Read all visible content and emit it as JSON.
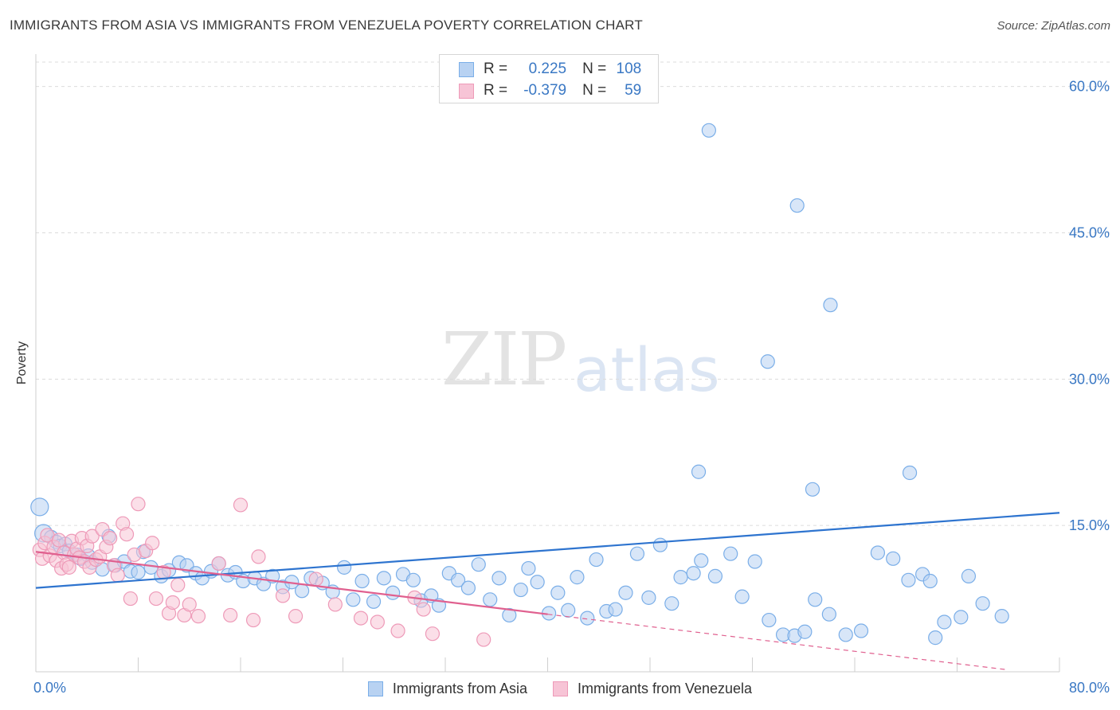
{
  "title": "IMMIGRANTS FROM ASIA VS IMMIGRANTS FROM VENEZUELA POVERTY CORRELATION CHART",
  "source": "Source: ZipAtlas.com",
  "watermark": {
    "zip": "ZIP",
    "atlas": "atlas"
  },
  "legend": [
    {
      "name": "Immigrants from Asia",
      "r_label": "R =",
      "r_value": "0.225",
      "n_label": "N =",
      "n_value": "108",
      "color": "#7aaee8",
      "fill": "#b8d2f2",
      "line": "#2e74cf"
    },
    {
      "name": "Immigrants from Venezuela",
      "r_label": "R =",
      "r_value": "-0.379",
      "n_label": "N =",
      "n_value": "59",
      "color": "#ee9ab8",
      "fill": "#f7c4d6",
      "line": "#e0608f"
    }
  ],
  "chart_data": {
    "type": "scatter",
    "title": "IMMIGRANTS FROM ASIA VS IMMIGRANTS FROM VENEZUELA POVERTY CORRELATION CHART",
    "xlabel": "",
    "ylabel": "Poverty",
    "xlim": [
      0,
      80
    ],
    "ylim": [
      0,
      62.5
    ],
    "x_tick_labels": [
      "0.0%",
      "80.0%"
    ],
    "y_ticks": [
      15,
      30,
      45,
      60
    ],
    "y_tick_labels": [
      "15.0%",
      "30.0%",
      "45.0%",
      "60.0%"
    ],
    "grid": true,
    "series": [
      {
        "name": "Immigrants from Asia",
        "r": 0.225,
        "n": 108,
        "trend": {
          "x": [
            0,
            80
          ],
          "y": [
            8.6,
            16.3
          ]
        },
        "points": [
          [
            0.3,
            16.9
          ],
          [
            0.6,
            14.2
          ],
          [
            1.2,
            13.8
          ],
          [
            1.6,
            13.3
          ],
          [
            1.9,
            12.9
          ],
          [
            2.3,
            13.1
          ],
          [
            2.6,
            12.4
          ],
          [
            3.2,
            12.0
          ],
          [
            3.5,
            11.6
          ],
          [
            4.1,
            11.9
          ],
          [
            4.4,
            11.2
          ],
          [
            5.2,
            10.5
          ],
          [
            5.7,
            13.9
          ],
          [
            6.2,
            10.9
          ],
          [
            6.9,
            11.3
          ],
          [
            7.4,
            10.3
          ],
          [
            8.0,
            10.2
          ],
          [
            8.4,
            12.3
          ],
          [
            9.0,
            10.7
          ],
          [
            9.8,
            9.8
          ],
          [
            10.4,
            10.4
          ],
          [
            11.2,
            11.2
          ],
          [
            11.8,
            10.9
          ],
          [
            12.5,
            10.1
          ],
          [
            13.0,
            9.6
          ],
          [
            13.7,
            10.3
          ],
          [
            14.3,
            11.1
          ],
          [
            15.0,
            9.9
          ],
          [
            15.6,
            10.2
          ],
          [
            16.2,
            9.3
          ],
          [
            17.1,
            9.6
          ],
          [
            17.8,
            9.0
          ],
          [
            18.5,
            9.8
          ],
          [
            19.3,
            8.7
          ],
          [
            20.0,
            9.2
          ],
          [
            20.8,
            8.3
          ],
          [
            21.5,
            9.6
          ],
          [
            22.4,
            9.1
          ],
          [
            23.2,
            8.2
          ],
          [
            24.1,
            10.7
          ],
          [
            24.8,
            7.4
          ],
          [
            25.5,
            9.3
          ],
          [
            26.4,
            7.2
          ],
          [
            27.2,
            9.6
          ],
          [
            27.9,
            8.1
          ],
          [
            28.7,
            10.0
          ],
          [
            29.5,
            9.4
          ],
          [
            30.1,
            7.3
          ],
          [
            30.9,
            7.8
          ],
          [
            31.5,
            6.8
          ],
          [
            32.3,
            10.1
          ],
          [
            33.0,
            9.4
          ],
          [
            33.8,
            8.6
          ],
          [
            34.6,
            11.0
          ],
          [
            35.5,
            7.4
          ],
          [
            36.2,
            9.6
          ],
          [
            37.0,
            5.8
          ],
          [
            37.9,
            8.4
          ],
          [
            38.5,
            10.6
          ],
          [
            39.2,
            9.2
          ],
          [
            40.1,
            6.0
          ],
          [
            40.8,
            8.1
          ],
          [
            41.6,
            6.3
          ],
          [
            42.3,
            9.7
          ],
          [
            43.1,
            5.5
          ],
          [
            43.8,
            11.5
          ],
          [
            44.6,
            6.2
          ],
          [
            45.3,
            6.4
          ],
          [
            46.1,
            8.1
          ],
          [
            47.0,
            12.1
          ],
          [
            47.9,
            7.6
          ],
          [
            48.8,
            13.0
          ],
          [
            49.7,
            7.0
          ],
          [
            50.4,
            9.7
          ],
          [
            51.4,
            10.1
          ],
          [
            52.0,
            11.4
          ],
          [
            53.1,
            9.8
          ],
          [
            54.3,
            12.1
          ],
          [
            55.2,
            7.7
          ],
          [
            56.2,
            11.3
          ],
          [
            57.3,
            5.3
          ],
          [
            58.4,
            3.8
          ],
          [
            59.3,
            3.7
          ],
          [
            60.1,
            4.1
          ],
          [
            60.9,
            7.4
          ],
          [
            62.0,
            5.9
          ],
          [
            63.3,
            3.8
          ],
          [
            64.5,
            4.2
          ],
          [
            65.8,
            12.2
          ],
          [
            67.0,
            11.6
          ],
          [
            68.2,
            9.4
          ],
          [
            69.3,
            10.0
          ],
          [
            70.3,
            3.5
          ],
          [
            71.0,
            5.1
          ],
          [
            72.3,
            5.6
          ],
          [
            72.9,
            9.8
          ],
          [
            74.0,
            7.0
          ],
          [
            75.5,
            5.7
          ],
          [
            52.6,
            55.5
          ],
          [
            59.5,
            47.8
          ],
          [
            62.1,
            37.6
          ],
          [
            57.2,
            31.8
          ],
          [
            68.3,
            20.4
          ],
          [
            60.7,
            18.7
          ],
          [
            51.8,
            20.5
          ],
          [
            69.9,
            9.3
          ]
        ]
      },
      {
        "name": "Immigrants from Venezuela",
        "r": -0.379,
        "n": 59,
        "trend": {
          "x": [
            0,
            40
          ],
          "y": [
            12.3,
            5.9
          ]
        },
        "trend_dashed": {
          "x": [
            40,
            76
          ],
          "y": [
            5.9,
            0.2
          ]
        },
        "points": [
          [
            0.3,
            12.5
          ],
          [
            0.5,
            11.6
          ],
          [
            0.7,
            13.2
          ],
          [
            0.9,
            14.0
          ],
          [
            1.1,
            11.9
          ],
          [
            1.4,
            12.8
          ],
          [
            1.6,
            11.4
          ],
          [
            1.8,
            13.5
          ],
          [
            2.0,
            10.6
          ],
          [
            2.2,
            12.2
          ],
          [
            2.4,
            11.0
          ],
          [
            2.6,
            10.7
          ],
          [
            2.8,
            13.4
          ],
          [
            3.0,
            12.0
          ],
          [
            3.2,
            12.6
          ],
          [
            3.4,
            11.7
          ],
          [
            3.6,
            13.7
          ],
          [
            3.8,
            11.3
          ],
          [
            4.0,
            12.9
          ],
          [
            4.2,
            10.7
          ],
          [
            4.4,
            13.9
          ],
          [
            4.7,
            11.5
          ],
          [
            5.0,
            11.8
          ],
          [
            5.2,
            14.6
          ],
          [
            5.5,
            12.8
          ],
          [
            5.8,
            13.7
          ],
          [
            6.1,
            10.9
          ],
          [
            6.4,
            9.9
          ],
          [
            6.8,
            15.2
          ],
          [
            7.1,
            14.1
          ],
          [
            7.4,
            7.5
          ],
          [
            7.7,
            12.0
          ],
          [
            8.0,
            17.2
          ],
          [
            8.6,
            12.4
          ],
          [
            9.1,
            13.2
          ],
          [
            9.4,
            7.5
          ],
          [
            10.0,
            10.2
          ],
          [
            10.4,
            6.0
          ],
          [
            10.7,
            7.1
          ],
          [
            11.1,
            8.9
          ],
          [
            11.6,
            5.8
          ],
          [
            12.0,
            6.9
          ],
          [
            12.7,
            5.7
          ],
          [
            14.3,
            11.1
          ],
          [
            15.2,
            5.8
          ],
          [
            16.0,
            17.1
          ],
          [
            17.0,
            5.3
          ],
          [
            17.4,
            11.8
          ],
          [
            19.3,
            7.8
          ],
          [
            20.3,
            5.7
          ],
          [
            21.9,
            9.5
          ],
          [
            23.4,
            6.9
          ],
          [
            25.4,
            5.5
          ],
          [
            26.7,
            5.1
          ],
          [
            28.3,
            4.2
          ],
          [
            29.6,
            7.6
          ],
          [
            30.3,
            6.4
          ],
          [
            31.0,
            3.9
          ],
          [
            35.0,
            3.3
          ]
        ]
      }
    ]
  }
}
